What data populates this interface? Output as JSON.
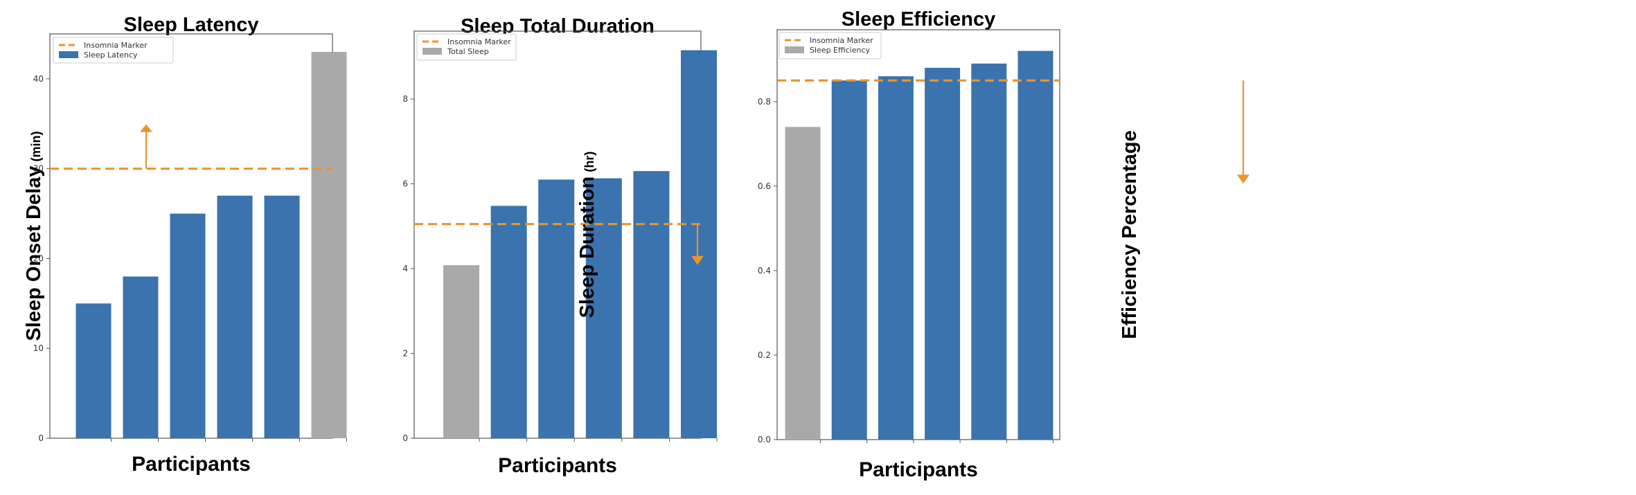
{
  "chart_data": [
    {
      "type": "bar",
      "title": "Sleep Latency",
      "xlabel": "Participants",
      "ylabel": "Sleep Onset Delay",
      "ylabel_unit": "(min)",
      "ylim": [
        0,
        45
      ],
      "yticks": [
        0,
        10,
        20,
        30,
        40
      ],
      "tick_labels": [
        "0",
        "10",
        "20",
        "30",
        "40"
      ],
      "values": [
        15,
        18,
        25,
        27,
        27,
        43
      ],
      "highlight_index": 5,
      "marker": {
        "label": "Insomnia Marker",
        "value": 30,
        "arrow_direction": "up",
        "arrow_after_bar": 0
      },
      "legend": {
        "position": "top-left",
        "entries": [
          "Insomnia Marker",
          "Sleep Latency"
        ]
      },
      "grid": false
    },
    {
      "type": "bar",
      "title": "Sleep Total Duration",
      "xlabel": "Participants",
      "ylabel": "Sleep Duration",
      "ylabel_unit": "(hr)",
      "ylim": [
        0,
        9.6
      ],
      "yticks": [
        0,
        2,
        4,
        6,
        8
      ],
      "tick_labels": [
        "0",
        "2",
        "4",
        "6",
        "8"
      ],
      "values": [
        4.08,
        5.48,
        6.1,
        6.13,
        6.3,
        9.15
      ],
      "highlight_index": 0,
      "marker": {
        "label": "Insomnia Marker",
        "value": 5.05,
        "arrow_direction": "down",
        "arrow_after_bar": 0
      },
      "legend": {
        "position": "top-left",
        "entries": [
          "Insomnia Marker",
          "Total Sleep"
        ]
      },
      "grid": false
    },
    {
      "type": "bar",
      "title": "Sleep Efficiency",
      "xlabel": "Participants",
      "ylabel": "Efficiency Percentage",
      "ylabel_unit": "",
      "ylim": [
        0,
        0.97
      ],
      "yticks": [
        0,
        0.2,
        0.4,
        0.6,
        0.8
      ],
      "tick_labels": [
        "0.0",
        "0.2",
        "0.4",
        "0.6",
        "0.8"
      ],
      "values": [
        0.74,
        0.85,
        0.86,
        0.88,
        0.89,
        0.92
      ],
      "highlight_index": 0,
      "marker": {
        "label": "Insomnia Marker",
        "value": 0.85,
        "arrow_direction": "down",
        "arrow_after_bar": 0
      },
      "legend": {
        "position": "top-left",
        "entries": [
          "Insomnia Marker",
          "Sleep Efficiency"
        ]
      },
      "grid": false
    }
  ],
  "colors": {
    "bar": "#3a73ad",
    "highlight": "#a9a9a9",
    "marker": "#e8952e",
    "axis": "#555555"
  }
}
